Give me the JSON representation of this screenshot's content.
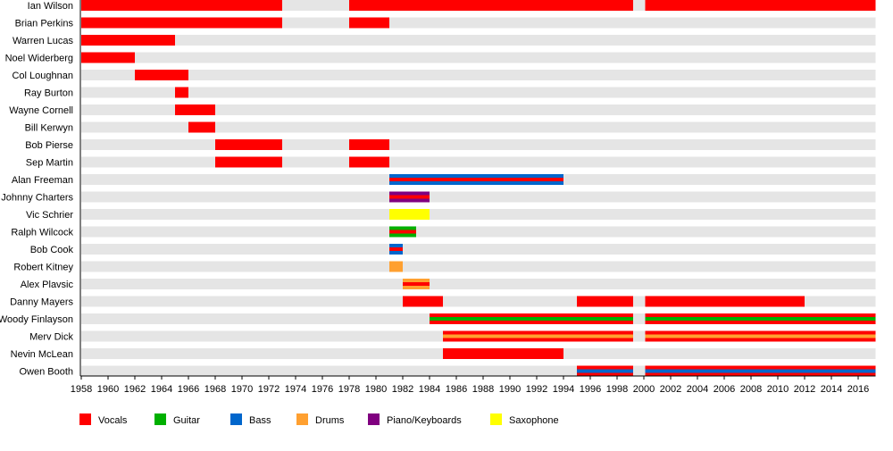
{
  "chart_data": {
    "type": "timeline",
    "xlim": [
      1958,
      2017.3
    ],
    "x_ticks": [
      1958,
      1960,
      1962,
      1964,
      1966,
      1968,
      1970,
      1972,
      1974,
      1976,
      1978,
      1980,
      1982,
      1984,
      1986,
      1988,
      1990,
      1992,
      1994,
      1996,
      1998,
      2000,
      2002,
      2004,
      2006,
      2008,
      2010,
      2012,
      2014,
      2016
    ],
    "colors": {
      "Vocals": "#ff0000",
      "Guitar": "#00b000",
      "Bass": "#0066cc",
      "Drums": "#ffa030",
      "Piano/Keyboards": "#800080",
      "Saxophone": "#ffff00"
    },
    "legend": [
      "Vocals",
      "Guitar",
      "Bass",
      "Drums",
      "Piano/Keyboards",
      "Saxophone"
    ],
    "legend_position": "bottom",
    "members": [
      {
        "name": "Ian Wilson",
        "periods": [
          {
            "start": 1958,
            "end": 1973,
            "role": "Vocals"
          },
          {
            "start": 1978,
            "end": 1999.2,
            "role": "Vocals"
          },
          {
            "start": 2000.1,
            "end": 2017.3,
            "role": "Vocals"
          }
        ]
      },
      {
        "name": "Brian Perkins",
        "periods": [
          {
            "start": 1958,
            "end": 1973,
            "role": "Vocals"
          },
          {
            "start": 1978,
            "end": 1981,
            "role": "Vocals"
          }
        ]
      },
      {
        "name": "Warren Lucas",
        "periods": [
          {
            "start": 1958,
            "end": 1965,
            "role": "Vocals"
          }
        ]
      },
      {
        "name": "Noel Widerberg",
        "periods": [
          {
            "start": 1958,
            "end": 1962,
            "role": "Vocals"
          }
        ]
      },
      {
        "name": "Col Loughnan",
        "periods": [
          {
            "start": 1962,
            "end": 1966,
            "role": "Vocals"
          }
        ]
      },
      {
        "name": "Ray Burton",
        "periods": [
          {
            "start": 1965,
            "end": 1966,
            "role": "Vocals"
          }
        ]
      },
      {
        "name": "Wayne Cornell",
        "periods": [
          {
            "start": 1965,
            "end": 1968,
            "role": "Vocals"
          }
        ]
      },
      {
        "name": "Bill Kerwyn",
        "periods": [
          {
            "start": 1966,
            "end": 1968,
            "role": "Vocals"
          }
        ]
      },
      {
        "name": "Bob Pierse",
        "periods": [
          {
            "start": 1968,
            "end": 1973,
            "role": "Vocals"
          },
          {
            "start": 1978,
            "end": 1981,
            "role": "Vocals"
          }
        ]
      },
      {
        "name": "Sep Martin",
        "periods": [
          {
            "start": 1968,
            "end": 1973,
            "role": "Vocals"
          },
          {
            "start": 1978,
            "end": 1981,
            "role": "Vocals"
          }
        ]
      },
      {
        "name": "Alan Freeman",
        "periods": [
          {
            "start": 1981,
            "end": 1994,
            "role": "Bass",
            "secondary": "Vocals"
          }
        ]
      },
      {
        "name": "Johnny Charters",
        "periods": [
          {
            "start": 1981,
            "end": 1984,
            "role": "Piano/Keyboards",
            "secondary": "Vocals"
          }
        ]
      },
      {
        "name": "Vic Schrier",
        "periods": [
          {
            "start": 1981,
            "end": 1984,
            "role": "Saxophone"
          }
        ]
      },
      {
        "name": "Ralph Wilcock",
        "periods": [
          {
            "start": 1981,
            "end": 1983,
            "role": "Guitar",
            "secondary": "Vocals"
          }
        ]
      },
      {
        "name": "Bob Cook",
        "periods": [
          {
            "start": 1981,
            "end": 1982,
            "role": "Bass",
            "secondary": "Vocals"
          }
        ]
      },
      {
        "name": "Robert Kitney",
        "periods": [
          {
            "start": 1981,
            "end": 1982,
            "role": "Drums"
          }
        ]
      },
      {
        "name": "Alex Plavsic",
        "periods": [
          {
            "start": 1982,
            "end": 1984,
            "role": "Drums",
            "secondary": "Vocals"
          }
        ]
      },
      {
        "name": "Danny Mayers",
        "periods": [
          {
            "start": 1982,
            "end": 1985,
            "role": "Vocals"
          },
          {
            "start": 1995,
            "end": 1999.2,
            "role": "Vocals"
          },
          {
            "start": 2000.1,
            "end": 2012,
            "role": "Vocals"
          }
        ]
      },
      {
        "name": "Woody Finlayson",
        "periods": [
          {
            "start": 1984,
            "end": 1999.2,
            "role": "Vocals",
            "secondary": "Guitar"
          },
          {
            "start": 2000.1,
            "end": 2017.3,
            "role": "Vocals",
            "secondary": "Guitar"
          }
        ]
      },
      {
        "name": "Merv Dick",
        "periods": [
          {
            "start": 1985,
            "end": 1999.2,
            "role": "Vocals",
            "secondary": "Drums"
          },
          {
            "start": 2000.1,
            "end": 2017.3,
            "role": "Vocals",
            "secondary": "Drums"
          }
        ]
      },
      {
        "name": "Nevin McLean",
        "periods": [
          {
            "start": 1985,
            "end": 1994,
            "role": "Vocals"
          }
        ]
      },
      {
        "name": "Owen Booth",
        "periods": [
          {
            "start": 1995,
            "end": 1999.2,
            "role": "Vocals",
            "secondary": "Bass"
          },
          {
            "start": 2000.1,
            "end": 2017.3,
            "role": "Vocals",
            "secondary": "Bass"
          }
        ]
      }
    ]
  }
}
